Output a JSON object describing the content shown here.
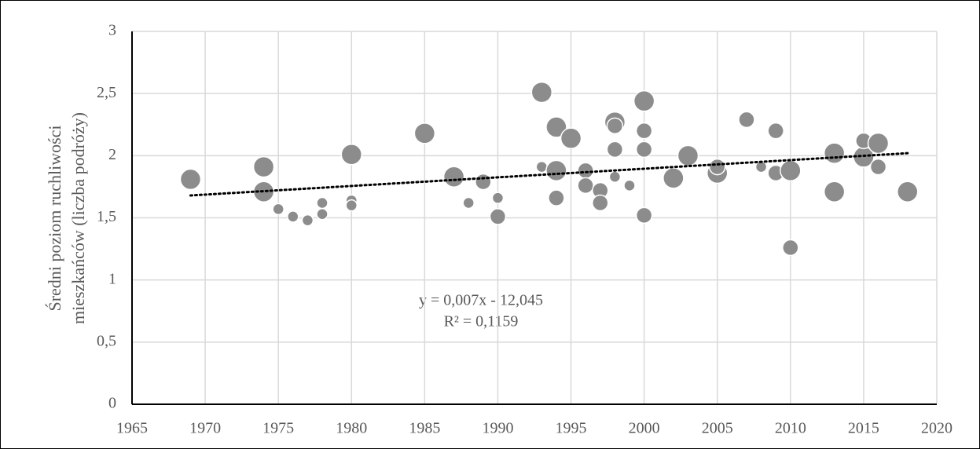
{
  "chart_data": {
    "type": "bubble",
    "y_label": [
      "Średni poziom ruchliwości",
      "mieszkańców (liczba podróży)"
    ],
    "annotations": [
      "y = 0,007x - 12,045",
      "R² = 0,1159"
    ],
    "color": "#8c8c8c",
    "grid": true,
    "xlim": [
      1965,
      2020
    ],
    "xticks": [
      1965,
      1970,
      1975,
      1980,
      1985,
      1990,
      1995,
      2000,
      2005,
      2010,
      2015,
      2020
    ],
    "ylim": [
      0,
      3
    ],
    "yticks": [
      0,
      {
        "value": 0.5,
        "label": "0,5"
      },
      1,
      {
        "value": 1.5,
        "label": "1,5"
      },
      2,
      {
        "value": 2.5,
        "label": "2,5"
      },
      3
    ],
    "x": [
      1969,
      1974,
      1974,
      1975,
      1976,
      1977,
      1978,
      1978,
      1980,
      1980,
      1980,
      1985,
      1987,
      1988,
      1989,
      1990,
      1990,
      1993,
      1993,
      1994,
      1994,
      1994,
      1995,
      1996,
      1996,
      1997,
      1997,
      1998,
      1998,
      1998,
      1998,
      1999,
      2000,
      2000,
      2000,
      2000,
      2002,
      2003,
      2005,
      2005,
      2007,
      2008,
      2009,
      2009,
      2010,
      2010,
      2013,
      2013,
      2015,
      2015,
      2016,
      2016,
      2018
    ],
    "y": [
      1.81,
      1.91,
      1.71,
      1.57,
      1.51,
      1.48,
      1.53,
      1.62,
      1.64,
      1.6,
      2.01,
      2.18,
      1.83,
      1.62,
      1.79,
      1.66,
      1.51,
      2.51,
      1.91,
      2.23,
      1.88,
      1.66,
      2.14,
      1.88,
      1.76,
      1.72,
      1.62,
      2.27,
      2.24,
      2.05,
      1.83,
      1.76,
      2.44,
      2.2,
      2.05,
      1.52,
      1.82,
      2.0,
      1.86,
      1.91,
      2.29,
      1.91,
      2.2,
      1.86,
      1.88,
      1.26,
      2.02,
      1.71,
      1.99,
      2.12,
      2.1,
      1.91,
      1.71
    ],
    "sizes": [
      3,
      3,
      3,
      1,
      1,
      1,
      1,
      1,
      1,
      1,
      3,
      3,
      3,
      1,
      2,
      1,
      2,
      3,
      1,
      3,
      3,
      2,
      3,
      2,
      2,
      2,
      2,
      3,
      2,
      2,
      1,
      1,
      3,
      2,
      2,
      2,
      3,
      3,
      3,
      2,
      2,
      1,
      2,
      2,
      3,
      2,
      3,
      3,
      3,
      2,
      3,
      2,
      3
    ],
    "trendline": {
      "x": [
        1969,
        2018
      ],
      "y": [
        1.68,
        2.02
      ]
    }
  }
}
